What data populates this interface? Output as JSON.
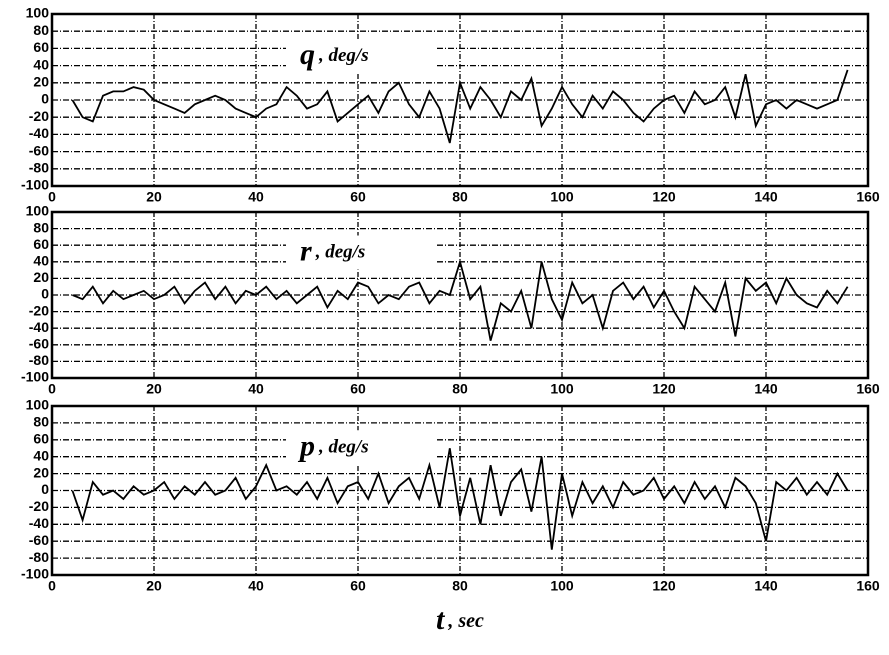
{
  "chart_data": [
    {
      "type": "line",
      "title": "q",
      "unit": ", deg/s",
      "x": [
        4,
        6,
        8,
        10,
        12,
        14,
        16,
        18,
        20,
        22,
        24,
        26,
        28,
        30,
        32,
        34,
        36,
        38,
        40,
        42,
        44,
        46,
        48,
        50,
        52,
        54,
        56,
        58,
        60,
        62,
        64,
        66,
        68,
        70,
        72,
        74,
        76,
        78,
        80,
        82,
        84,
        86,
        88,
        90,
        92,
        94,
        96,
        98,
        100,
        102,
        104,
        106,
        108,
        110,
        112,
        114,
        116,
        118,
        120,
        122,
        124,
        126,
        128,
        130,
        132,
        134,
        136,
        138,
        140,
        142,
        144,
        146,
        148,
        150,
        152,
        154,
        156
      ],
      "series": [
        {
          "color": "#000000",
          "values": [
            0,
            -20,
            -25,
            5,
            10,
            10,
            15,
            12,
            0,
            -5,
            -10,
            -15,
            -5,
            0,
            5,
            0,
            -10,
            -15,
            -20,
            -10,
            -5,
            15,
            5,
            -10,
            -5,
            10,
            -25,
            -15,
            -5,
            5,
            -15,
            10,
            20,
            -5,
            -20,
            10,
            -10,
            -50,
            20,
            -10,
            15,
            0,
            -20,
            10,
            0,
            25,
            -30,
            -10,
            15,
            -5,
            -20,
            5,
            -10,
            10,
            0,
            -15,
            -25,
            -10,
            0,
            5,
            -15,
            10,
            -5,
            0,
            15,
            -20,
            30,
            -30,
            -5,
            0,
            -10,
            0,
            -5,
            -10,
            -5,
            0,
            35
          ]
        }
      ],
      "xlim": [
        0,
        160
      ],
      "xticks": [
        0,
        20,
        40,
        60,
        80,
        100,
        120,
        140,
        160
      ],
      "ylim": [
        -100,
        100
      ],
      "yticks": [
        -100,
        -80,
        -60,
        -40,
        -20,
        0,
        20,
        40,
        60,
        80,
        100
      ],
      "grid": true
    },
    {
      "type": "line",
      "title": "r",
      "unit": ", deg/s",
      "x": [
        4,
        6,
        8,
        10,
        12,
        14,
        16,
        18,
        20,
        22,
        24,
        26,
        28,
        30,
        32,
        34,
        36,
        38,
        40,
        42,
        44,
        46,
        48,
        50,
        52,
        54,
        56,
        58,
        60,
        62,
        64,
        66,
        68,
        70,
        72,
        74,
        76,
        78,
        80,
        82,
        84,
        86,
        88,
        90,
        92,
        94,
        96,
        98,
        100,
        102,
        104,
        106,
        108,
        110,
        112,
        114,
        116,
        118,
        120,
        122,
        124,
        126,
        128,
        130,
        132,
        134,
        136,
        138,
        140,
        142,
        144,
        146,
        148,
        150,
        152,
        154,
        156
      ],
      "series": [
        {
          "color": "#000000",
          "values": [
            0,
            -5,
            10,
            -10,
            5,
            -5,
            0,
            5,
            -5,
            0,
            10,
            -10,
            5,
            15,
            -5,
            10,
            -10,
            5,
            0,
            10,
            -5,
            5,
            -10,
            0,
            10,
            -15,
            5,
            -5,
            15,
            10,
            -10,
            0,
            -5,
            10,
            15,
            -10,
            5,
            0,
            40,
            -5,
            10,
            -55,
            -10,
            -20,
            5,
            -40,
            40,
            -5,
            -30,
            15,
            -10,
            0,
            -40,
            5,
            15,
            -5,
            10,
            -15,
            5,
            -20,
            -40,
            10,
            -5,
            -20,
            15,
            -50,
            20,
            5,
            15,
            -10,
            20,
            0,
            -10,
            -15,
            5,
            -10,
            10
          ]
        }
      ],
      "xlim": [
        0,
        160
      ],
      "xticks": [
        0,
        20,
        40,
        60,
        80,
        100,
        120,
        140,
        160
      ],
      "ylim": [
        -100,
        100
      ],
      "yticks": [
        -100,
        -80,
        -60,
        -40,
        -20,
        0,
        20,
        40,
        60,
        80,
        100
      ],
      "grid": true
    },
    {
      "type": "line",
      "title": "p",
      "unit": ", deg/s",
      "x": [
        4,
        6,
        8,
        10,
        12,
        14,
        16,
        18,
        20,
        22,
        24,
        26,
        28,
        30,
        32,
        34,
        36,
        38,
        40,
        42,
        44,
        46,
        48,
        50,
        52,
        54,
        56,
        58,
        60,
        62,
        64,
        66,
        68,
        70,
        72,
        74,
        76,
        78,
        80,
        82,
        84,
        86,
        88,
        90,
        92,
        94,
        96,
        98,
        100,
        102,
        104,
        106,
        108,
        110,
        112,
        114,
        116,
        118,
        120,
        122,
        124,
        126,
        128,
        130,
        132,
        134,
        136,
        138,
        140,
        142,
        144,
        146,
        148,
        150,
        152,
        154,
        156
      ],
      "series": [
        {
          "color": "#000000",
          "values": [
            0,
            -35,
            10,
            -5,
            0,
            -10,
            5,
            -5,
            0,
            10,
            -10,
            5,
            -5,
            10,
            -5,
            0,
            15,
            -10,
            5,
            30,
            0,
            5,
            -5,
            10,
            -10,
            15,
            -15,
            5,
            10,
            -10,
            20,
            -15,
            5,
            15,
            -10,
            30,
            -20,
            50,
            -30,
            15,
            -40,
            30,
            -30,
            10,
            25,
            -25,
            40,
            -70,
            20,
            -30,
            10,
            -15,
            5,
            -20,
            10,
            -5,
            0,
            15,
            -10,
            5,
            -15,
            10,
            -10,
            5,
            -20,
            15,
            5,
            -15,
            -60,
            10,
            0,
            15,
            -5,
            10,
            -5,
            20,
            0
          ]
        }
      ],
      "xlim": [
        0,
        160
      ],
      "xticks": [
        0,
        20,
        40,
        60,
        80,
        100,
        120,
        140,
        160
      ],
      "ylim": [
        -100,
        100
      ],
      "yticks": [
        -100,
        -80,
        -60,
        -40,
        -20,
        0,
        20,
        40,
        60,
        80,
        100
      ],
      "grid": true,
      "xlabel": "t",
      "xlabel_unit": ", sec"
    }
  ]
}
